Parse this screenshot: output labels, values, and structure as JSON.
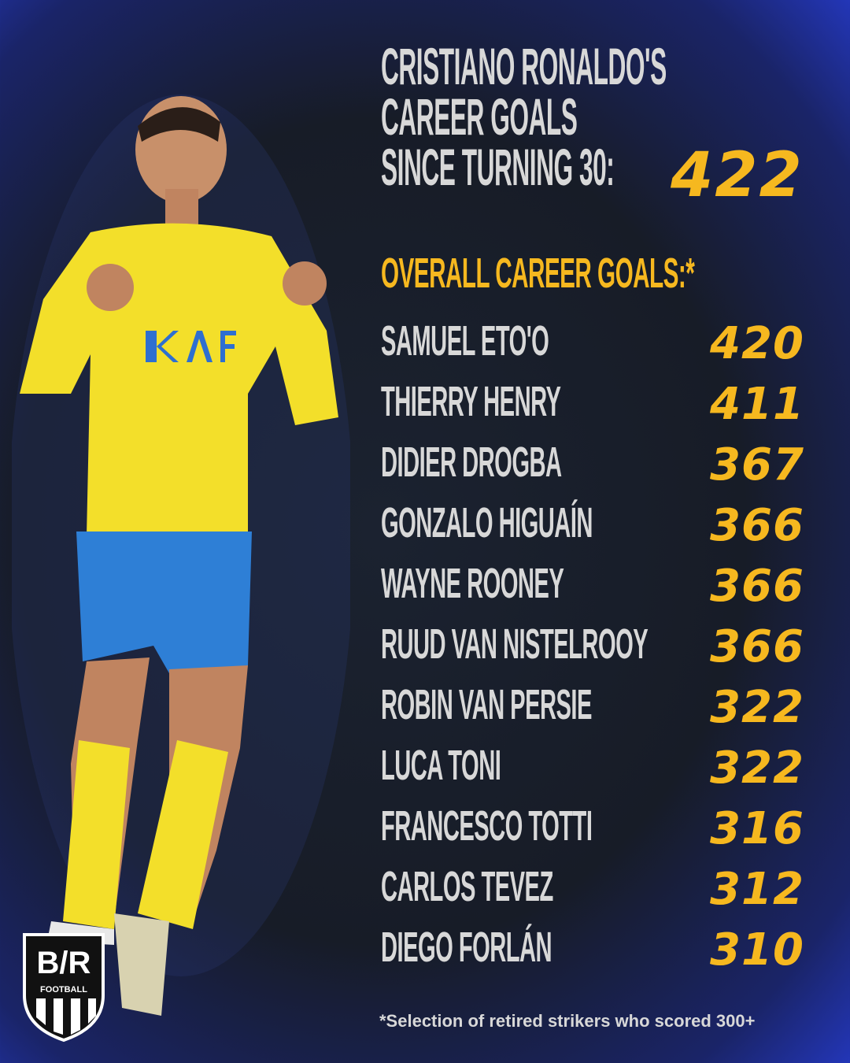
{
  "title": {
    "lines": [
      "CRISTIANO RONALDO'S",
      "CAREER GOALS",
      "SINCE TURNING 30:"
    ],
    "value": "422"
  },
  "subtitle": "OVERALL CAREER GOALS:*",
  "players": [
    {
      "name": "SAMUEL ETO'O",
      "goals": "420"
    },
    {
      "name": "THIERRY HENRY",
      "goals": "411"
    },
    {
      "name": "DIDIER DROGBA",
      "goals": "367"
    },
    {
      "name": "GONZALO HIGUAÍN",
      "goals": "366"
    },
    {
      "name": "WAYNE ROONEY",
      "goals": "366"
    },
    {
      "name": "RUUD VAN NISTELROOY",
      "goals": "366"
    },
    {
      "name": "ROBIN VAN PERSIE",
      "goals": "322"
    },
    {
      "name": "LUCA TONI",
      "goals": "322"
    },
    {
      "name": "FRANCESCO TOTTI",
      "goals": "316"
    },
    {
      "name": "CARLOS TEVEZ",
      "goals": "312"
    },
    {
      "name": "DIEGO FORLÁN",
      "goals": "310"
    }
  ],
  "footnote": "*Selection of retired strikers who scored 300+",
  "logo": {
    "text": "B/R",
    "sub": "FOOTBALL"
  },
  "colors": {
    "accent": "#f6b81f",
    "text": "#d8d8d8",
    "background": "#171c27",
    "glow": "#2336b8"
  }
}
